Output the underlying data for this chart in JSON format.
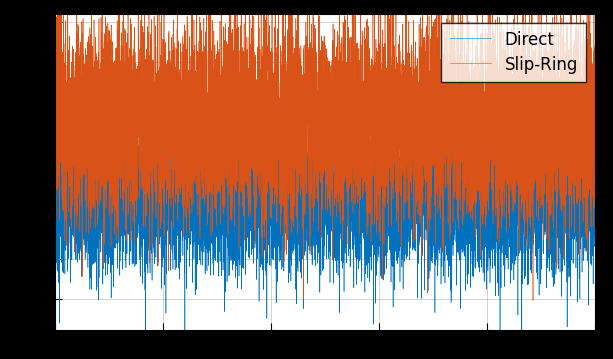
{
  "legend_entries": [
    "Direct",
    "Slip-Ring"
  ],
  "line_colors": [
    "#0072BD",
    "#D95319"
  ],
  "background_color": "#000000",
  "axes_background": "#FFFFFF",
  "grid_color": "#BEBEBE",
  "n_points": 10000,
  "direct_mean": -0.12,
  "direct_std": 0.22,
  "slipring_mean": 0.38,
  "slipring_std": 0.3,
  "xlim": [
    0,
    10000
  ],
  "ylim": [
    -0.95,
    1.05
  ],
  "legend_fontsize": 12,
  "linewidth": 0.4,
  "figsize": [
    6.13,
    3.59
  ],
  "dpi": 100
}
